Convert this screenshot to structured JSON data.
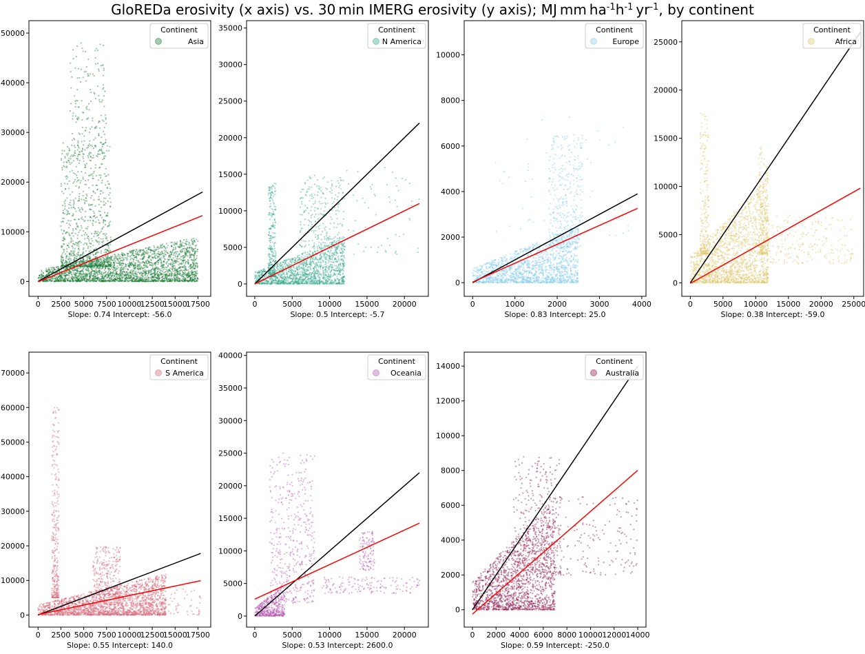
{
  "title": "GloREDa erosivity (x axis) vs. 30 min IMERG erosivity (y axis); MJ mm ha",
  "title_units": {
    "h_sup": "-1",
    "h": "h",
    "hsup": "-1",
    "yr": "yr",
    "yrsup": "-1",
    "tail": ", by continent"
  },
  "legend_title": "Continent",
  "colors": {
    "identity_line": "#000000",
    "fit_line": "#ff0000"
  },
  "chart_data": [
    {
      "type": "scatter",
      "continent": "Asia",
      "color": "#1a7a36",
      "xlim": [
        -1000,
        18900
      ],
      "ylim": [
        -3000,
        52500
      ],
      "xticks": [
        0,
        2500,
        5000,
        7500,
        10000,
        12500,
        15000,
        17500
      ],
      "xticklabels": [
        "0",
        "2500",
        "5000",
        "7500",
        "10000",
        "12500",
        "15000",
        "17500"
      ],
      "yticks": [
        0,
        10000,
        20000,
        30000,
        40000,
        50000
      ],
      "yticklabels": [
        "0",
        "10000",
        "20000",
        "30000",
        "40000",
        "50000"
      ],
      "xlabel": "Slope: 0.74 Intercept: -56.0",
      "slope": 0.74,
      "intercept": -56.0,
      "identity": [
        0,
        18000
      ],
      "fit": [
        0,
        18000
      ],
      "clusters": [
        {
          "n": 2600,
          "x": [
            0,
            17500
          ],
          "y": [
            0,
            9000
          ],
          "shape": "wedge"
        },
        {
          "n": 900,
          "x": [
            2500,
            8000
          ],
          "y": [
            3000,
            28000
          ],
          "shape": "tower"
        },
        {
          "n": 180,
          "x": [
            3500,
            7500
          ],
          "y": [
            25000,
            48000
          ],
          "shape": "sparse"
        }
      ]
    },
    {
      "type": "scatter",
      "continent": "N America",
      "color": "#3aa88e",
      "xlim": [
        -1100,
        23200
      ],
      "ylim": [
        -1700,
        36000
      ],
      "xticks": [
        0,
        5000,
        10000,
        15000,
        20000
      ],
      "xticklabels": [
        "0",
        "5000",
        "10000",
        "15000",
        "20000"
      ],
      "yticks": [
        0,
        5000,
        10000,
        15000,
        20000,
        25000,
        30000,
        35000
      ],
      "yticklabels": [
        "0",
        "5000",
        "10000",
        "15000",
        "20000",
        "25000",
        "30000",
        "35000"
      ],
      "xlabel": "Slope: 0.5 Intercept: -5.7",
      "slope": 0.5,
      "intercept": -5.7,
      "identity": [
        0,
        22000
      ],
      "fit": [
        0,
        22000
      ],
      "clusters": [
        {
          "n": 1500,
          "x": [
            0,
            12000
          ],
          "y": [
            0,
            6500
          ],
          "shape": "wedge"
        },
        {
          "n": 300,
          "x": [
            1800,
            2800
          ],
          "y": [
            1000,
            14000
          ],
          "shape": "spike"
        },
        {
          "n": 260,
          "x": [
            6000,
            12000
          ],
          "y": [
            5000,
            15000
          ],
          "shape": "sparse"
        },
        {
          "n": 60,
          "x": [
            12000,
            22000
          ],
          "y": [
            4000,
            16000
          ],
          "shape": "sparse"
        }
      ]
    },
    {
      "type": "scatter",
      "continent": "Europe",
      "color": "#87cdee",
      "xlim": [
        -200,
        4100
      ],
      "ylim": [
        -600,
        11500
      ],
      "xticks": [
        0,
        1000,
        2000,
        3000,
        4000
      ],
      "xticklabels": [
        "0",
        "1000",
        "2000",
        "3000",
        "4000"
      ],
      "yticks": [
        0,
        2000,
        4000,
        6000,
        8000,
        10000
      ],
      "yticklabels": [
        "0",
        "2000",
        "4000",
        "6000",
        "8000",
        "10000"
      ],
      "xlabel": "Slope: 0.83 Intercept: 25.0",
      "slope": 0.83,
      "intercept": 25.0,
      "identity": [
        0,
        3900
      ],
      "fit": [
        0,
        3900
      ],
      "clusters": [
        {
          "n": 1700,
          "x": [
            0,
            2500
          ],
          "y": [
            0,
            2500
          ],
          "shape": "wedge"
        },
        {
          "n": 360,
          "x": [
            1800,
            2600
          ],
          "y": [
            1500,
            6500
          ],
          "shape": "sparse"
        },
        {
          "n": 60,
          "x": [
            500,
            3700
          ],
          "y": [
            2000,
            7500
          ],
          "shape": "sparse"
        }
      ]
    },
    {
      "type": "scatter",
      "continent": "Africa",
      "color": "#ddc86e",
      "xlim": [
        -1300,
        26500
      ],
      "ylim": [
        -1400,
        27200
      ],
      "xticks": [
        0,
        5000,
        10000,
        15000,
        20000,
        25000
      ],
      "xticklabels": [
        "0",
        "5000",
        "10000",
        "15000",
        "20000",
        "25000"
      ],
      "yticks": [
        0,
        5000,
        10000,
        15000,
        20000,
        25000
      ],
      "yticklabels": [
        "0",
        "5000",
        "10000",
        "15000",
        "20000",
        "25000"
      ],
      "xlabel": "Slope: 0.38 Intercept: -59.0",
      "slope": 0.38,
      "intercept": -59.0,
      "identity": [
        0,
        26000
      ],
      "fit": [
        0,
        26000
      ],
      "clusters": [
        {
          "n": 1800,
          "x": [
            0,
            12000
          ],
          "y": [
            0,
            11000
          ],
          "shape": "wedge"
        },
        {
          "n": 240,
          "x": [
            1500,
            2800
          ],
          "y": [
            3000,
            18000
          ],
          "shape": "spike"
        },
        {
          "n": 220,
          "x": [
            10500,
            11800
          ],
          "y": [
            3000,
            14500
          ],
          "shape": "spike"
        },
        {
          "n": 220,
          "x": [
            12000,
            25000
          ],
          "y": [
            2000,
            7000
          ],
          "shape": "sparse"
        }
      ]
    },
    {
      "type": "scatter",
      "continent": "S America",
      "color": "#d4697a",
      "xlim": [
        -1000,
        18900
      ],
      "ylim": [
        -3500,
        76000
      ],
      "xticks": [
        0,
        2500,
        5000,
        7500,
        10000,
        12500,
        15000,
        17500
      ],
      "xticklabels": [
        "0",
        "2500",
        "5000",
        "7500",
        "10000",
        "12500",
        "15000",
        "17500"
      ],
      "yticks": [
        0,
        10000,
        20000,
        30000,
        40000,
        50000,
        60000,
        70000
      ],
      "yticklabels": [
        "0",
        "10000",
        "20000",
        "30000",
        "40000",
        "50000",
        "60000",
        "70000"
      ],
      "xlabel": "Slope: 0.55 Intercept: 140.0",
      "slope": 0.55,
      "intercept": 140.0,
      "identity": [
        0,
        17800
      ],
      "fit": [
        0,
        17800
      ],
      "clusters": [
        {
          "n": 2200,
          "x": [
            0,
            14000
          ],
          "y": [
            0,
            12000
          ],
          "shape": "wedge"
        },
        {
          "n": 320,
          "x": [
            1500,
            2300
          ],
          "y": [
            5000,
            60000
          ],
          "shape": "spike"
        },
        {
          "n": 300,
          "x": [
            6000,
            9000
          ],
          "y": [
            5000,
            20000
          ],
          "shape": "sparse"
        },
        {
          "n": 60,
          "x": [
            13000,
            17800
          ],
          "y": [
            0,
            8000
          ],
          "shape": "sparse"
        }
      ]
    },
    {
      "type": "scatter",
      "continent": "Oceania",
      "color": "#b65cb3",
      "xlim": [
        -1100,
        23200
      ],
      "ylim": [
        -1700,
        40500
      ],
      "xticks": [
        0,
        5000,
        10000,
        15000,
        20000
      ],
      "xticklabels": [
        "0",
        "5000",
        "10000",
        "15000",
        "20000"
      ],
      "yticks": [
        0,
        5000,
        10000,
        15000,
        20000,
        25000,
        30000,
        35000,
        40000
      ],
      "yticklabels": [
        "0",
        "5000",
        "10000",
        "15000",
        "20000",
        "25000",
        "30000",
        "35000",
        "40000"
      ],
      "xlabel": "Slope: 0.53 Intercept: 2600.0",
      "slope": 0.53,
      "intercept": 2600.0,
      "identity": [
        0,
        22000
      ],
      "fit": [
        0,
        22000
      ],
      "clusters": [
        {
          "n": 500,
          "x": [
            0,
            4000
          ],
          "y": [
            0,
            5000
          ],
          "shape": "wedge"
        },
        {
          "n": 450,
          "x": [
            2000,
            8000
          ],
          "y": [
            2000,
            25000
          ],
          "shape": "sparse"
        },
        {
          "n": 120,
          "x": [
            14000,
            16000
          ],
          "y": [
            7000,
            13000
          ],
          "shape": "sparse"
        },
        {
          "n": 150,
          "x": [
            9000,
            22000
          ],
          "y": [
            3500,
            6000
          ],
          "shape": "sparse"
        }
      ]
    },
    {
      "type": "scatter",
      "continent": "Australia",
      "color": "#8c1a4e",
      "xlim": [
        -700,
        14700
      ],
      "ylim": [
        -1000,
        14800
      ],
      "xticks": [
        0,
        2000,
        4000,
        6000,
        8000,
        10000,
        12000,
        14000
      ],
      "xticklabels": [
        "0",
        "2000",
        "4000",
        "6000",
        "8000",
        "10000",
        "12000",
        "14000"
      ],
      "yticks": [
        0,
        2000,
        4000,
        6000,
        8000,
        10000,
        12000,
        14000
      ],
      "yticklabels": [
        "0",
        "2000",
        "4000",
        "6000",
        "8000",
        "10000",
        "12000",
        "14000"
      ],
      "xlabel": "Slope: 0.59 Intercept: -250.0",
      "slope": 0.59,
      "intercept": -250.0,
      "identity": [
        0,
        14000
      ],
      "fit": [
        0,
        14000
      ],
      "clusters": [
        {
          "n": 1700,
          "x": [
            0,
            7000
          ],
          "y": [
            0,
            6500
          ],
          "shape": "wedge"
        },
        {
          "n": 300,
          "x": [
            3500,
            7500
          ],
          "y": [
            2000,
            8800
          ],
          "shape": "sparse"
        },
        {
          "n": 180,
          "x": [
            6500,
            14000
          ],
          "y": [
            2000,
            6500
          ],
          "shape": "sparse"
        }
      ]
    }
  ]
}
